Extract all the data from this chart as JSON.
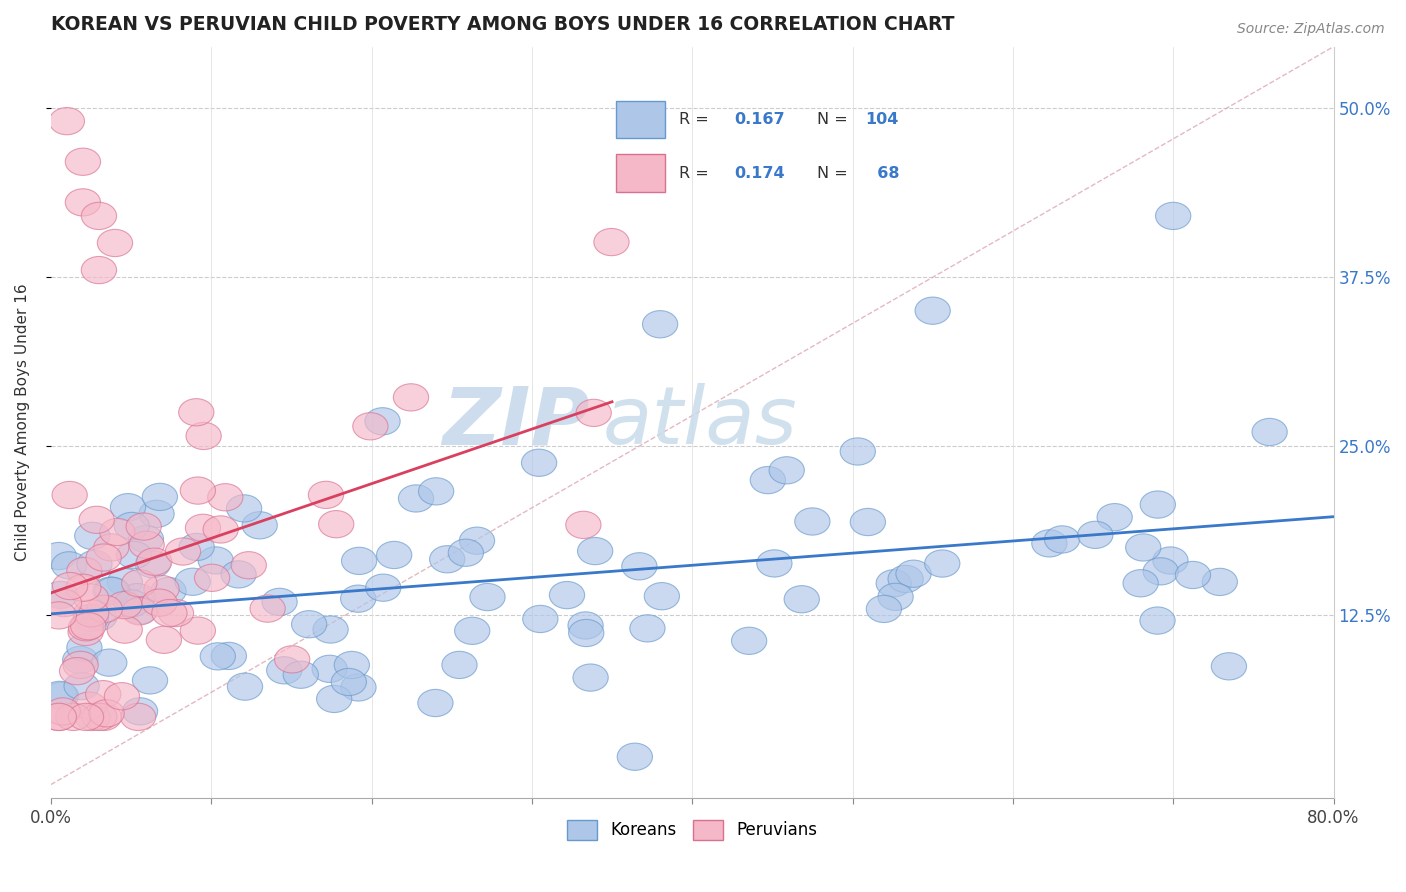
{
  "title": "KOREAN VS PERUVIAN CHILD POVERTY AMONG BOYS UNDER 16 CORRELATION CHART",
  "source": "Source: ZipAtlas.com",
  "ylabel": "Child Poverty Among Boys Under 16",
  "xlim": [
    0.0,
    0.8
  ],
  "ylim": [
    -0.01,
    0.545
  ],
  "ytick_pos": [
    0.125,
    0.25,
    0.375,
    0.5
  ],
  "ytick_labels": [
    "12.5%",
    "25.0%",
    "37.5%",
    "50.0%"
  ],
  "xtick_pos": [
    0.0,
    0.1,
    0.2,
    0.3,
    0.4,
    0.5,
    0.6,
    0.7,
    0.8
  ],
  "xtick_labels": [
    "0.0%",
    "",
    "",
    "",
    "",
    "",
    "",
    "",
    "80.0%"
  ],
  "korean_R": 0.167,
  "korean_N": 104,
  "peruvian_R": 0.174,
  "peruvian_N": 68,
  "korean_fill": "#aec6e8",
  "korean_edge": "#6699cc",
  "peruvian_fill": "#f5b8c8",
  "peruvian_edge": "#d97090",
  "korean_line_color": "#3a78c9",
  "peruvian_line_color": "#d94060",
  "diag_line_color": "#dda8b0",
  "watermark_zip_color": "#b0c8e0",
  "watermark_atlas_color": "#b8cce0",
  "background_color": "#ffffff",
  "legend_R_color": "#3a78c9",
  "legend_N_color": "#3a78c9"
}
